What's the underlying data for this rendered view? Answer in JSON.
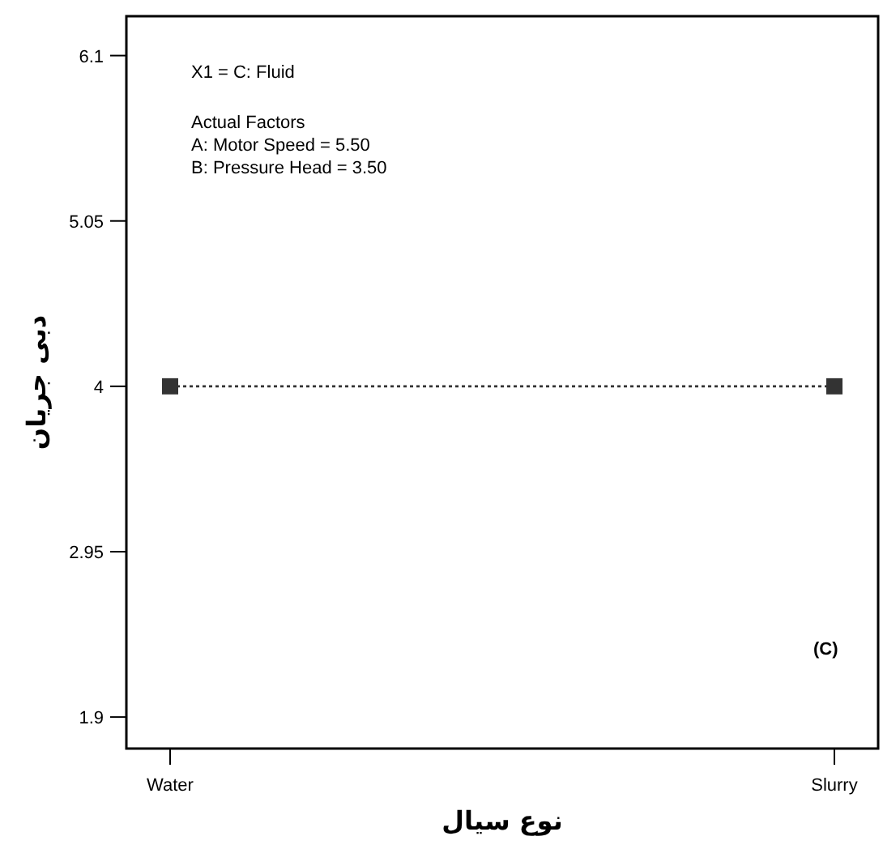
{
  "chart_data": {
    "type": "line",
    "xlabel": "نوع سیال",
    "ylabel": "دبی جریان",
    "categories": [
      "Water",
      "Slurry"
    ],
    "series": [
      {
        "color": "#333333",
        "values": [
          4,
          4
        ]
      }
    ],
    "ylim": [
      1.7,
      6.35
    ],
    "yticks": [
      1.9,
      2.95,
      4,
      5.05,
      6.1
    ],
    "marker": "square",
    "line_style": "dotted",
    "annotations": [
      "X1 = C: Fluid",
      "Actual Factors",
      "A: Motor Speed = 5.50",
      "B: Pressure Head = 3.50",
      "(C)"
    ]
  }
}
